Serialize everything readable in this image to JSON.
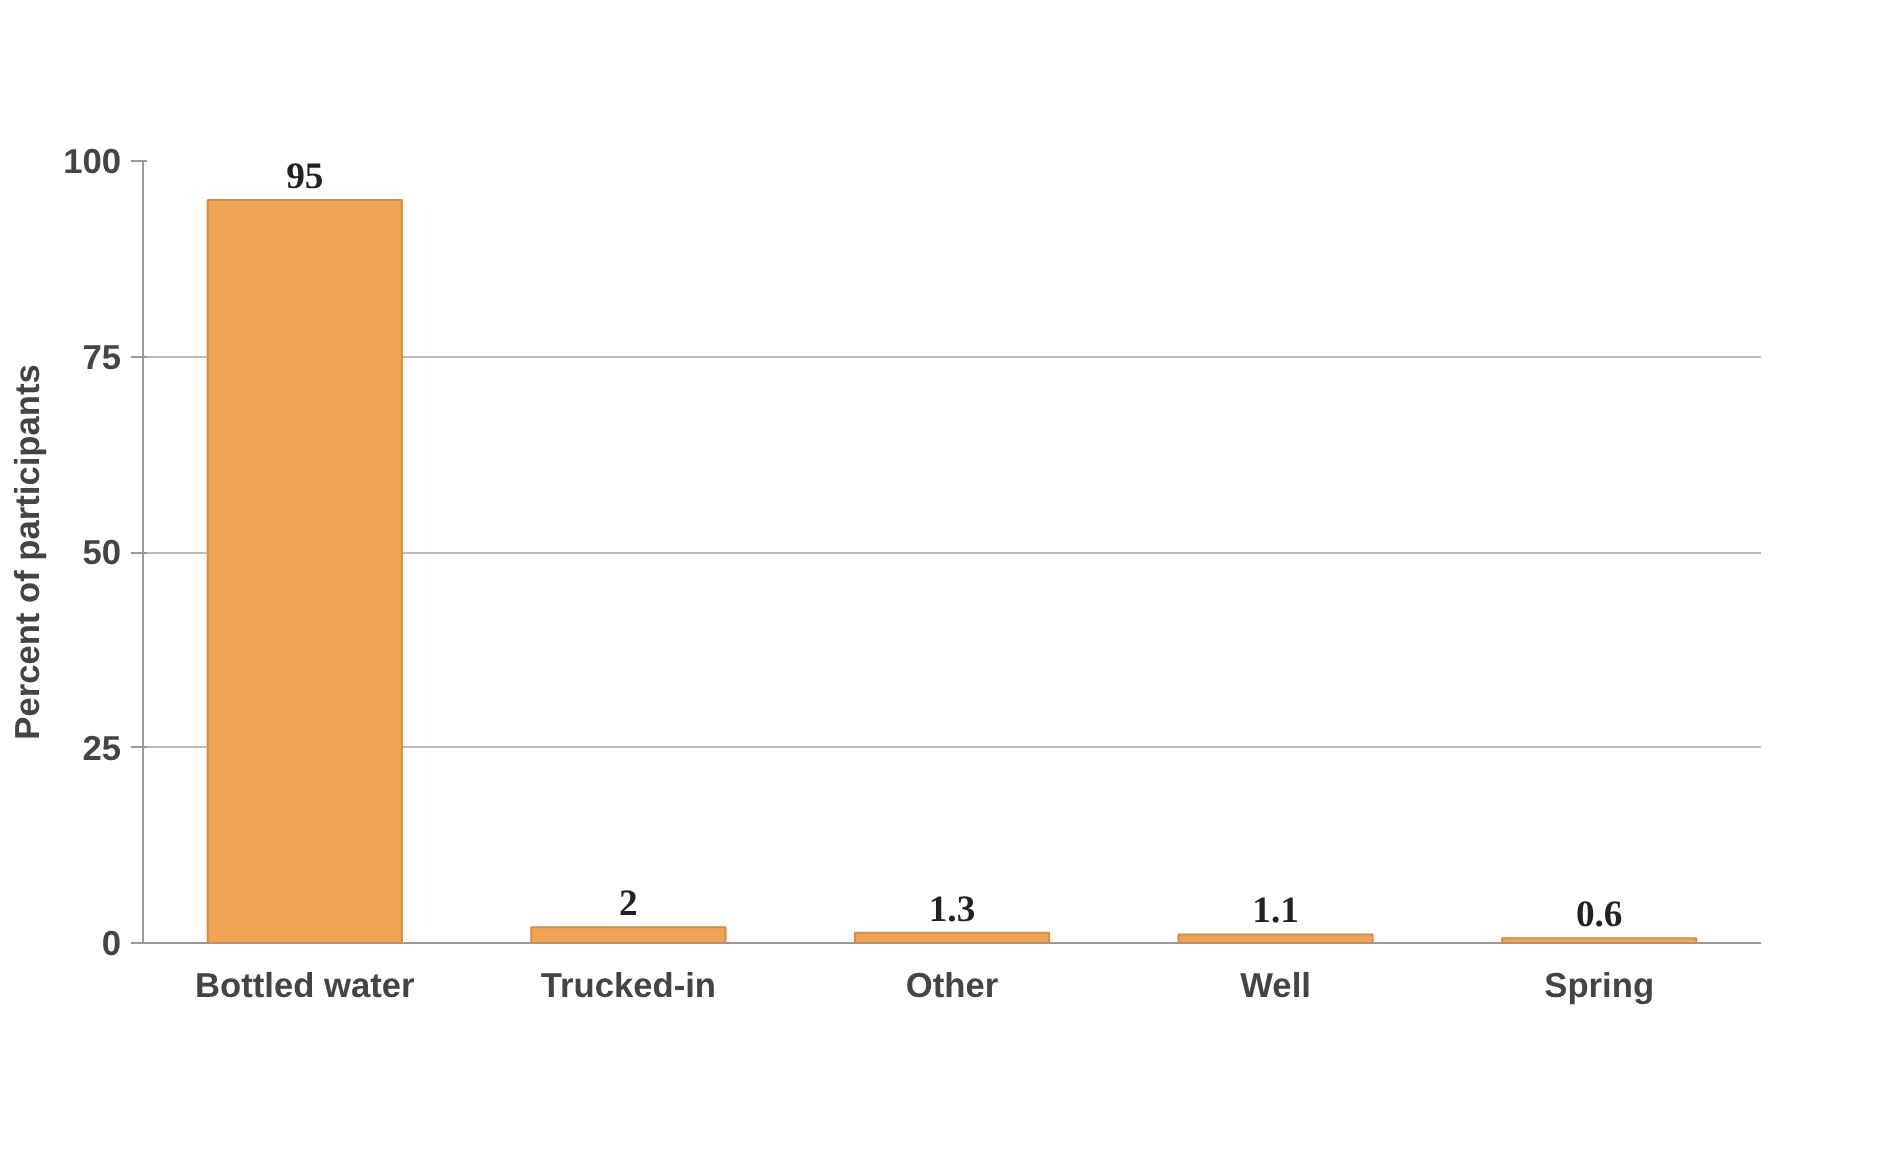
{
  "chart_data": {
    "type": "bar",
    "ylabel": "Percent of participants",
    "categories": [
      "Bottled water",
      "Trucked-in",
      "Other",
      "Well",
      "Spring"
    ],
    "values": [
      95,
      2,
      1.3,
      1.1,
      0.6
    ],
    "color": "#f2a455",
    "ylim": [
      0,
      100
    ],
    "yticks": [
      0,
      25,
      50,
      75,
      100
    ],
    "grid": "y",
    "data_labels": true
  }
}
